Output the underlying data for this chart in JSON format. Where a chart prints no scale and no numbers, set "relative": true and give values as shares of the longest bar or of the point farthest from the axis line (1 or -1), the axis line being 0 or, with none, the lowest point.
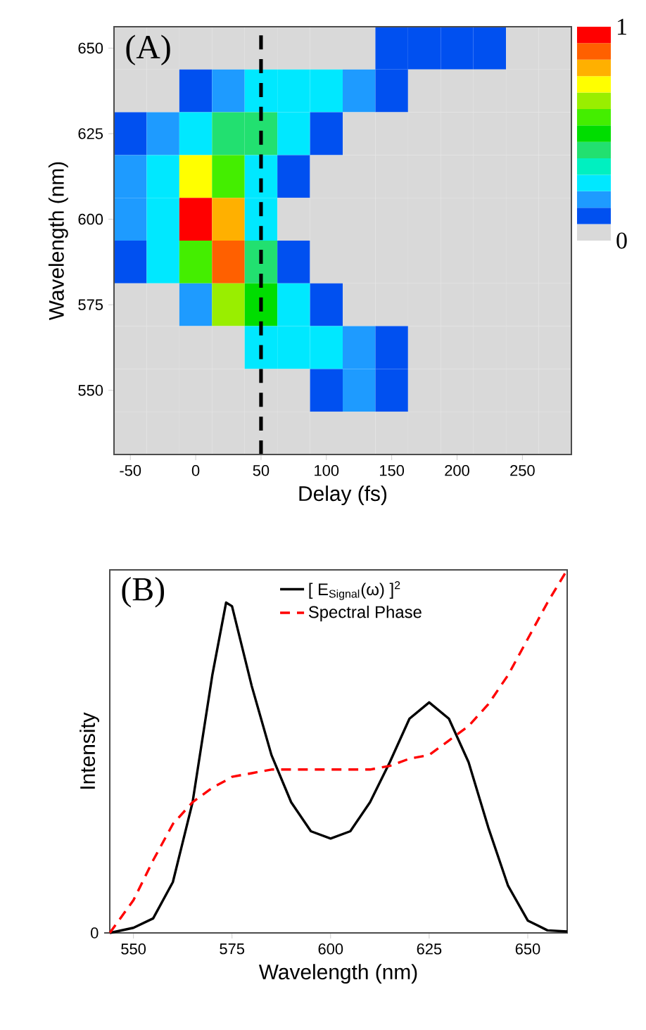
{
  "chart_data": [
    {
      "type": "heatmap",
      "annotations": [
        "(A)"
      ],
      "xlabel": "Delay (fs)",
      "ylabel": "Wavelength (nm)",
      "categories": [
        "-50",
        null,
        "0",
        null,
        "50",
        null,
        "100",
        null,
        "150",
        null,
        "200",
        null,
        "250",
        null
      ],
      "y_categories": [
        "650",
        null,
        "625",
        null,
        "600",
        null,
        "575",
        null,
        "550",
        null
      ],
      "cells": [
        [
          0,
          0,
          0,
          0,
          0,
          0,
          0,
          0,
          0.1,
          0.1,
          0.1,
          0.1,
          0,
          0
        ],
        [
          0,
          0,
          0.1,
          0.18,
          0.26,
          0.26,
          0.26,
          0.18,
          0.1,
          0,
          0,
          0,
          0,
          0
        ],
        [
          0.1,
          0.18,
          0.3,
          0.45,
          0.45,
          0.3,
          0.1,
          0,
          0,
          0,
          0,
          0,
          0,
          0
        ],
        [
          0.18,
          0.26,
          0.7,
          0.55,
          0.3,
          0.1,
          0,
          0,
          0,
          0,
          0,
          0,
          0,
          0
        ],
        [
          0.18,
          0.3,
          0.95,
          0.8,
          0.26,
          0,
          0,
          0,
          0,
          0,
          0,
          0,
          0,
          0
        ],
        [
          0.1,
          0.26,
          0.6,
          0.85,
          0.4,
          0.1,
          0,
          0,
          0,
          0,
          0,
          0,
          0,
          0
        ],
        [
          0,
          0,
          0.18,
          0.65,
          0.5,
          0.3,
          0.1,
          0,
          0,
          0,
          0,
          0,
          0,
          0
        ],
        [
          0,
          0,
          0,
          0,
          0.3,
          0.3,
          0.26,
          0.18,
          0.1,
          0,
          0,
          0,
          0,
          0
        ],
        [
          0,
          0,
          0,
          0,
          0,
          0,
          0.1,
          0.18,
          0.1,
          0,
          0,
          0,
          0,
          0
        ],
        [
          0,
          0,
          0,
          0,
          0,
          0,
          0,
          0,
          0,
          0,
          0,
          0,
          0,
          0
        ]
      ],
      "colors": [
        "#d9d9d9",
        "#0050f0",
        "#1e9bff",
        "#00e8ff",
        "#00f0c0",
        "#22e070",
        "#00dd00",
        "#44ee00",
        "#99ee00",
        "#ffff00",
        "#ffb000",
        "#ff6000",
        "#ff0000"
      ],
      "clim": [
        0,
        1
      ],
      "cticks": [
        0,
        1
      ],
      "ref_lines": [
        {
          "axis": "x",
          "value": "50",
          "color": "#000000",
          "line_style": "dashed"
        }
      ]
    },
    {
      "type": "line",
      "annotations": [
        "(B)",
        "0"
      ],
      "xlabel": "Wavelength (nm)",
      "ylabel": "Intensity",
      "relative": true,
      "x": [
        544,
        550,
        555,
        560,
        565,
        570,
        573.5,
        575,
        580,
        585,
        590,
        595,
        600,
        605,
        610,
        615,
        620,
        625,
        630,
        635,
        640,
        645,
        650,
        655,
        660
      ],
      "xlim": [
        544,
        660
      ],
      "xticks": [
        550,
        575,
        600,
        625,
        650
      ],
      "legend": "top",
      "marker": "none",
      "series": [
        {
          "name": "[ E$_{Signal}$(ω) ]$^{2}$",
          "color": "#000000",
          "line_style": "solid",
          "values": [
            0,
            0.014,
            0.04,
            0.14,
            0.36,
            0.71,
            0.91,
            0.9,
            0.68,
            0.49,
            0.36,
            0.28,
            0.26,
            0.28,
            0.36,
            0.47,
            0.59,
            0.635,
            0.59,
            0.47,
            0.29,
            0.13,
            0.034,
            0.007,
            0.004
          ]
        },
        {
          "name": "Spectral Phase",
          "color": "#ff0000",
          "line_style": "dashed",
          "values": [
            0,
            0.09,
            0.2,
            0.3,
            0.36,
            0.4,
            0.42,
            0.43,
            0.44,
            0.45,
            0.45,
            0.45,
            0.45,
            0.45,
            0.45,
            0.46,
            0.48,
            0.49,
            0.53,
            0.57,
            0.63,
            0.71,
            0.81,
            0.91,
            1.0
          ]
        }
      ]
    }
  ]
}
